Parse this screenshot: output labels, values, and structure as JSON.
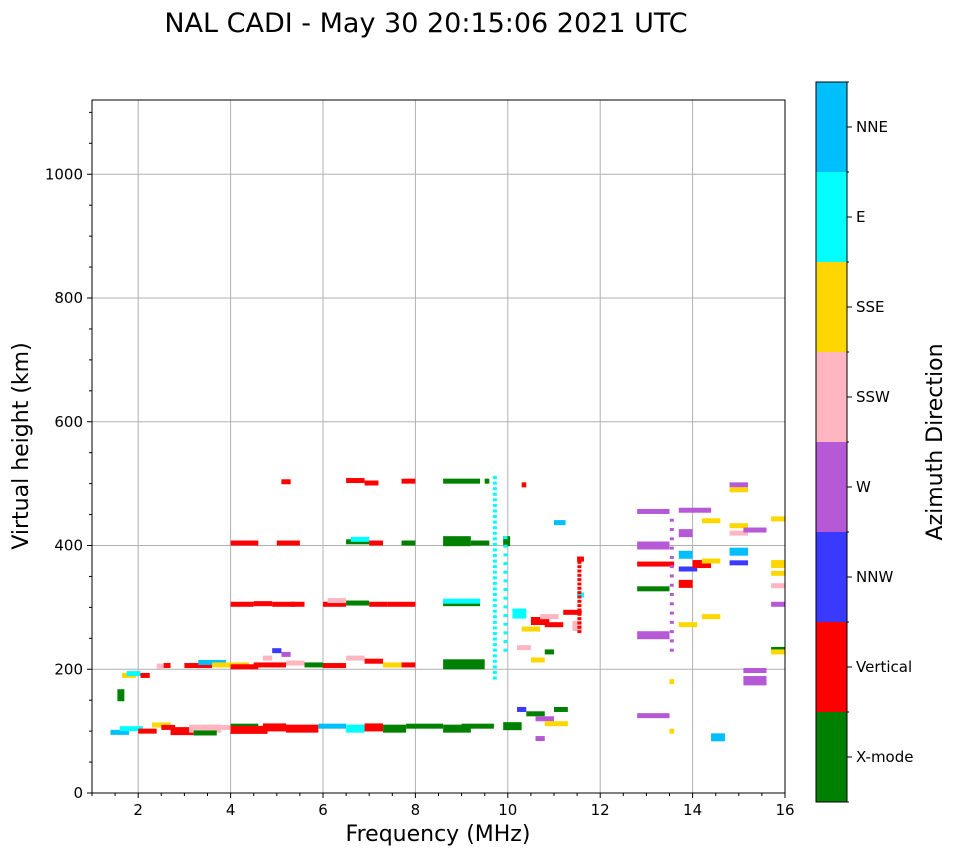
{
  "chart_data": {
    "type": "scatter",
    "title": "NAL CADI - May 30 20:15:06 2021 UTC",
    "xlabel": "Frequency (MHz)",
    "ylabel": "Virtual height (km)",
    "xlim": [
      1,
      16
    ],
    "ylim": [
      0,
      1120
    ],
    "x_ticks": [
      2,
      4,
      6,
      8,
      10,
      12,
      14,
      16
    ],
    "y_ticks": [
      0,
      200,
      400,
      600,
      800,
      1000
    ],
    "grid": true,
    "colorbar": {
      "label": "Azimuth Direction",
      "categories": [
        {
          "name": "X-mode",
          "color": "#008000"
        },
        {
          "name": "Vertical",
          "color": "#ff0000"
        },
        {
          "name": "NNW",
          "color": "#3a3aff"
        },
        {
          "name": "W",
          "color": "#b659d6"
        },
        {
          "name": "SSW",
          "color": "#ffb6c1"
        },
        {
          "name": "SSE",
          "color": "#ffd700"
        },
        {
          "name": "E",
          "color": "#00ffff"
        },
        {
          "name": "NNE",
          "color": "#00bfff"
        }
      ]
    },
    "points": [
      {
        "x": 1.65,
        "x2": 1.95,
        "y": 190,
        "dir": "SSE"
      },
      {
        "x": 1.75,
        "x2": 2.05,
        "y": 193,
        "dir": "E"
      },
      {
        "x": 2.05,
        "x2": 2.25,
        "y": 190,
        "dir": "Vertical"
      },
      {
        "x": 1.55,
        "x2": 1.7,
        "y": 158,
        "dir": "X-mode",
        "h": 12
      },
      {
        "x": 2.4,
        "x2": 2.55,
        "y": 205,
        "dir": "SSW"
      },
      {
        "x": 2.55,
        "x2": 2.7,
        "y": 206,
        "dir": "Vertical"
      },
      {
        "x": 3.0,
        "x2": 3.6,
        "y": 206,
        "dir": "Vertical"
      },
      {
        "x": 3.3,
        "x2": 3.9,
        "y": 211,
        "dir": "NNE"
      },
      {
        "x": 3.6,
        "x2": 4.4,
        "y": 207,
        "dir": "SSE"
      },
      {
        "x": 4.0,
        "x2": 4.6,
        "y": 204,
        "dir": "Vertical"
      },
      {
        "x": 4.5,
        "x2": 5.2,
        "y": 207,
        "dir": "Vertical"
      },
      {
        "x": 4.7,
        "x2": 4.9,
        "y": 218,
        "dir": "SSW"
      },
      {
        "x": 4.9,
        "x2": 5.1,
        "y": 230,
        "dir": "NNW"
      },
      {
        "x": 5.1,
        "x2": 5.3,
        "y": 224,
        "dir": "W"
      },
      {
        "x": 5.2,
        "x2": 5.6,
        "y": 210,
        "dir": "SSW"
      },
      {
        "x": 5.6,
        "x2": 6.0,
        "y": 207,
        "dir": "X-mode"
      },
      {
        "x": 6.0,
        "x2": 6.5,
        "y": 206,
        "dir": "Vertical"
      },
      {
        "x": 6.5,
        "x2": 6.9,
        "y": 218,
        "dir": "SSW"
      },
      {
        "x": 6.9,
        "x2": 7.3,
        "y": 213,
        "dir": "Vertical"
      },
      {
        "x": 7.3,
        "x2": 7.7,
        "y": 207,
        "dir": "SSE"
      },
      {
        "x": 7.7,
        "x2": 8.0,
        "y": 207,
        "dir": "Vertical"
      },
      {
        "x": 8.6,
        "x2": 9.5,
        "y": 208,
        "dir": "X-mode",
        "h": 10
      },
      {
        "x": 1.4,
        "x2": 1.8,
        "y": 98,
        "dir": "NNE"
      },
      {
        "x": 1.6,
        "x2": 2.1,
        "y": 104,
        "dir": "E"
      },
      {
        "x": 2.0,
        "x2": 2.4,
        "y": 100,
        "dir": "Vertical"
      },
      {
        "x": 2.3,
        "x2": 2.7,
        "y": 110,
        "dir": "SSE"
      },
      {
        "x": 2.5,
        "x2": 2.8,
        "y": 106,
        "dir": "Vertical"
      },
      {
        "x": 2.7,
        "x2": 3.2,
        "y": 100,
        "dir": "Vertical",
        "h": 8
      },
      {
        "x": 3.1,
        "x2": 3.8,
        "y": 104,
        "dir": "SSW",
        "h": 8
      },
      {
        "x": 3.2,
        "x2": 3.7,
        "y": 97,
        "dir": "X-mode"
      },
      {
        "x": 3.8,
        "x2": 4.2,
        "y": 106,
        "dir": "SSW"
      },
      {
        "x": 4.0,
        "x2": 4.6,
        "y": 108,
        "dir": "X-mode"
      },
      {
        "x": 4.0,
        "x2": 4.8,
        "y": 102,
        "dir": "Vertical",
        "h": 8
      },
      {
        "x": 4.7,
        "x2": 5.2,
        "y": 106,
        "dir": "Vertical",
        "h": 8
      },
      {
        "x": 5.2,
        "x2": 5.9,
        "y": 104,
        "dir": "Vertical",
        "h": 8
      },
      {
        "x": 5.9,
        "x2": 6.5,
        "y": 108,
        "dir": "NNE"
      },
      {
        "x": 6.5,
        "x2": 6.9,
        "y": 104,
        "dir": "E",
        "h": 8
      },
      {
        "x": 6.9,
        "x2": 7.3,
        "y": 106,
        "dir": "Vertical",
        "h": 8
      },
      {
        "x": 7.3,
        "x2": 7.8,
        "y": 104,
        "dir": "X-mode",
        "h": 8
      },
      {
        "x": 7.8,
        "x2": 8.6,
        "y": 108,
        "dir": "X-mode"
      },
      {
        "x": 8.6,
        "x2": 9.2,
        "y": 104,
        "dir": "X-mode",
        "h": 8
      },
      {
        "x": 9.0,
        "x2": 9.7,
        "y": 108,
        "dir": "X-mode"
      },
      {
        "x": 9.9,
        "x2": 10.3,
        "y": 108,
        "dir": "X-mode",
        "h": 8
      },
      {
        "x": 4.0,
        "x2": 4.5,
        "y": 305,
        "dir": "Vertical"
      },
      {
        "x": 4.5,
        "x2": 4.9,
        "y": 306,
        "dir": "Vertical"
      },
      {
        "x": 4.9,
        "x2": 5.4,
        "y": 305,
        "dir": "Vertical"
      },
      {
        "x": 5.3,
        "x2": 5.6,
        "y": 305,
        "dir": "Vertical"
      },
      {
        "x": 6.0,
        "x2": 6.5,
        "y": 305,
        "dir": "Vertical"
      },
      {
        "x": 6.1,
        "x2": 6.5,
        "y": 311,
        "dir": "SSW"
      },
      {
        "x": 6.5,
        "x2": 7.0,
        "y": 307,
        "dir": "X-mode"
      },
      {
        "x": 7.0,
        "x2": 7.4,
        "y": 305,
        "dir": "Vertical"
      },
      {
        "x": 7.4,
        "x2": 8.0,
        "y": 305,
        "dir": "Vertical"
      },
      {
        "x": 8.6,
        "x2": 9.4,
        "y": 306,
        "dir": "X-mode"
      },
      {
        "x": 8.6,
        "x2": 9.4,
        "y": 310,
        "dir": "E"
      },
      {
        "x": 4.0,
        "x2": 4.6,
        "y": 404,
        "dir": "Vertical"
      },
      {
        "x": 5.0,
        "x2": 5.5,
        "y": 404,
        "dir": "Vertical"
      },
      {
        "x": 6.5,
        "x2": 7.0,
        "y": 406,
        "dir": "X-mode"
      },
      {
        "x": 6.6,
        "x2": 7.0,
        "y": 410,
        "dir": "E"
      },
      {
        "x": 7.0,
        "x2": 7.3,
        "y": 404,
        "dir": "Vertical"
      },
      {
        "x": 7.7,
        "x2": 8.0,
        "y": 404,
        "dir": "X-mode"
      },
      {
        "x": 8.6,
        "x2": 9.2,
        "y": 407,
        "dir": "X-mode",
        "h": 10
      },
      {
        "x": 9.2,
        "x2": 9.6,
        "y": 404,
        "dir": "X-mode"
      },
      {
        "x": 9.9,
        "x2": 10.05,
        "y": 407,
        "dir": "X-mode",
        "h": 10
      },
      {
        "x": 5.1,
        "x2": 5.3,
        "y": 503,
        "dir": "Vertical"
      },
      {
        "x": 6.5,
        "x2": 6.9,
        "y": 505,
        "dir": "Vertical"
      },
      {
        "x": 6.9,
        "x2": 7.2,
        "y": 501,
        "dir": "Vertical"
      },
      {
        "x": 7.7,
        "x2": 8.0,
        "y": 504,
        "dir": "Vertical"
      },
      {
        "x": 8.6,
        "x2": 9.4,
        "y": 504,
        "dir": "X-mode"
      },
      {
        "x": 9.5,
        "x2": 9.6,
        "y": 504,
        "dir": "X-mode"
      },
      {
        "x": 10.3,
        "x2": 10.4,
        "y": 498,
        "dir": "Vertical"
      },
      {
        "x": 10.1,
        "x2": 10.4,
        "y": 290,
        "dir": "E",
        "h": 10
      },
      {
        "x": 10.3,
        "x2": 10.7,
        "y": 265,
        "dir": "SSE"
      },
      {
        "x": 10.5,
        "x2": 10.9,
        "y": 278,
        "dir": "Vertical",
        "h": 8
      },
      {
        "x": 10.7,
        "x2": 11.1,
        "y": 285,
        "dir": "SSW"
      },
      {
        "x": 10.8,
        "x2": 11.2,
        "y": 272,
        "dir": "Vertical"
      },
      {
        "x": 11.2,
        "x2": 11.6,
        "y": 292,
        "dir": "Vertical"
      },
      {
        "x": 11.4,
        "x2": 11.6,
        "y": 270,
        "dir": "SSW",
        "h": 10
      },
      {
        "x": 11.5,
        "x2": 11.65,
        "y": 320,
        "dir": "E"
      },
      {
        "x": 11.5,
        "x2": 11.65,
        "y": 378,
        "dir": "Vertical"
      },
      {
        "x": 10.2,
        "x2": 10.5,
        "y": 235,
        "dir": "SSW"
      },
      {
        "x": 10.5,
        "x2": 10.8,
        "y": 215,
        "dir": "SSE"
      },
      {
        "x": 10.8,
        "x2": 11.0,
        "y": 228,
        "dir": "X-mode"
      },
      {
        "x": 10.2,
        "x2": 10.4,
        "y": 135,
        "dir": "NNW"
      },
      {
        "x": 10.4,
        "x2": 10.8,
        "y": 128,
        "dir": "X-mode"
      },
      {
        "x": 10.6,
        "x2": 11.0,
        "y": 120,
        "dir": "W"
      },
      {
        "x": 10.8,
        "x2": 11.3,
        "y": 112,
        "dir": "SSE"
      },
      {
        "x": 11.0,
        "x2": 11.3,
        "y": 135,
        "dir": "X-mode"
      },
      {
        "x": 10.6,
        "x2": 10.8,
        "y": 88,
        "dir": "W"
      },
      {
        "x": 11.0,
        "x2": 11.25,
        "y": 437,
        "dir": "NNE"
      },
      {
        "x": 12.8,
        "x2": 13.5,
        "y": 125,
        "dir": "W"
      },
      {
        "x": 12.8,
        "x2": 13.5,
        "y": 255,
        "dir": "W",
        "h": 8
      },
      {
        "x": 12.8,
        "x2": 13.5,
        "y": 330,
        "dir": "X-mode"
      },
      {
        "x": 12.8,
        "x2": 13.6,
        "y": 370,
        "dir": "Vertical"
      },
      {
        "x": 12.8,
        "x2": 13.5,
        "y": 400,
        "dir": "W",
        "h": 8
      },
      {
        "x": 12.8,
        "x2": 13.5,
        "y": 455,
        "dir": "W"
      },
      {
        "x": 13.7,
        "x2": 14.4,
        "y": 457,
        "dir": "W"
      },
      {
        "x": 13.7,
        "x2": 14.0,
        "y": 420,
        "dir": "W",
        "h": 8
      },
      {
        "x": 13.7,
        "x2": 14.0,
        "y": 385,
        "dir": "NNE",
        "h": 8
      },
      {
        "x": 13.7,
        "x2": 14.1,
        "y": 362,
        "dir": "NNW"
      },
      {
        "x": 13.7,
        "x2": 14.0,
        "y": 338,
        "dir": "Vertical",
        "h": 8
      },
      {
        "x": 13.7,
        "x2": 14.1,
        "y": 272,
        "dir": "SSE"
      },
      {
        "x": 14.0,
        "x2": 14.4,
        "y": 370,
        "dir": "Vertical",
        "h": 8
      },
      {
        "x": 14.2,
        "x2": 14.6,
        "y": 375,
        "dir": "SSE"
      },
      {
        "x": 14.2,
        "x2": 14.6,
        "y": 440,
        "dir": "SSE"
      },
      {
        "x": 14.2,
        "x2": 14.6,
        "y": 285,
        "dir": "SSE"
      },
      {
        "x": 14.4,
        "x2": 14.7,
        "y": 90,
        "dir": "NNE",
        "h": 8
      },
      {
        "x": 14.8,
        "x2": 15.2,
        "y": 390,
        "dir": "NNE",
        "h": 8
      },
      {
        "x": 14.8,
        "x2": 15.2,
        "y": 372,
        "dir": "NNW"
      },
      {
        "x": 14.8,
        "x2": 15.2,
        "y": 432,
        "dir": "SSE"
      },
      {
        "x": 14.8,
        "x2": 15.2,
        "y": 498,
        "dir": "W"
      },
      {
        "x": 14.8,
        "x2": 15.2,
        "y": 490,
        "dir": "SSE"
      },
      {
        "x": 14.8,
        "x2": 15.2,
        "y": 420,
        "dir": "SSW"
      },
      {
        "x": 15.1,
        "x2": 15.6,
        "y": 425,
        "dir": "W"
      },
      {
        "x": 15.1,
        "x2": 15.6,
        "y": 198,
        "dir": "W"
      },
      {
        "x": 15.1,
        "x2": 15.6,
        "y": 185,
        "dir": "W"
      },
      {
        "x": 15.1,
        "x2": 15.6,
        "y": 178,
        "dir": "W"
      },
      {
        "x": 15.7,
        "x2": 16.0,
        "y": 443,
        "dir": "SSE"
      },
      {
        "x": 15.7,
        "x2": 16.0,
        "y": 370,
        "dir": "SSE",
        "h": 8
      },
      {
        "x": 15.7,
        "x2": 16.0,
        "y": 355,
        "dir": "SSE"
      },
      {
        "x": 15.7,
        "x2": 16.0,
        "y": 335,
        "dir": "SSW"
      },
      {
        "x": 15.7,
        "x2": 16.0,
        "y": 305,
        "dir": "W"
      },
      {
        "x": 15.7,
        "x2": 16.0,
        "y": 232,
        "dir": "X-mode"
      },
      {
        "x": 15.7,
        "x2": 16.0,
        "y": 228,
        "dir": "SSE"
      },
      {
        "x": 13.5,
        "x2": 13.6,
        "y": 180,
        "dir": "SSE"
      },
      {
        "x": 13.5,
        "x2": 13.6,
        "y": 100,
        "dir": "SSE"
      }
    ],
    "column_points": [
      {
        "x": 9.72,
        "y0": 185,
        "y1": 510,
        "step": 9,
        "dir": "E"
      },
      {
        "x": 9.95,
        "y0": 230,
        "y1": 420,
        "step": 14,
        "dir": "E"
      },
      {
        "x": 11.55,
        "y0": 260,
        "y1": 380,
        "step": 7,
        "dir": "Vertical"
      },
      {
        "x": 13.55,
        "y0": 230,
        "y1": 450,
        "step": 15,
        "dir": "W"
      }
    ]
  }
}
